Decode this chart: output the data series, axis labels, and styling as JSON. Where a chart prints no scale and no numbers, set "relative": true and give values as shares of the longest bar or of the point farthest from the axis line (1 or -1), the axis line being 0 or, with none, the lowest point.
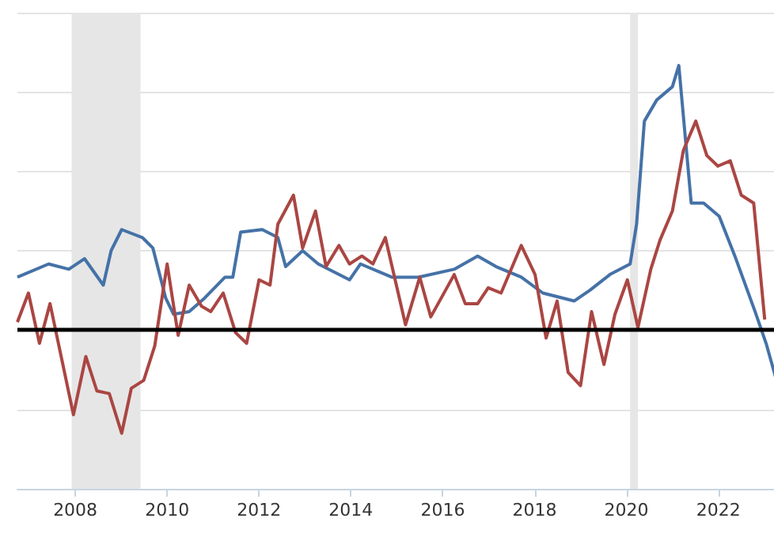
{
  "chart_data": {
    "type": "line",
    "relative": true,
    "grid": "y",
    "xlim": [
      2006.74,
      2023.35
    ],
    "xticks": [
      2008,
      2010,
      2012,
      2014,
      2016,
      2018,
      2020,
      2022
    ],
    "series": [
      {
        "color": "#4572a7",
        "x": [
          2006.74,
          2007.42,
          2007.86,
          2008.2,
          2008.61,
          2008.78,
          2009.01,
          2009.46,
          2009.69,
          2009.97,
          2010.14,
          2010.48,
          2010.81,
          2011.26,
          2011.43,
          2011.6,
          2012.07,
          2012.41,
          2012.58,
          2012.95,
          2013.29,
          2013.97,
          2014.21,
          2014.89,
          2015.47,
          2016.25,
          2016.76,
          2017.16,
          2017.71,
          2018.18,
          2018.86,
          2019.2,
          2019.64,
          2020.08,
          2020.22,
          2020.39,
          2020.66,
          2021.0,
          2021.14,
          2021.41,
          2021.68,
          2022.02,
          2022.36,
          2022.8,
          2023.04,
          2023.25
        ],
        "values": [
          0.2,
          0.25,
          0.23,
          0.27,
          0.17,
          0.3,
          0.38,
          0.35,
          0.31,
          0.12,
          0.06,
          0.07,
          0.12,
          0.2,
          0.2,
          0.37,
          0.38,
          0.35,
          0.24,
          0.3,
          0.25,
          0.19,
          0.25,
          0.2,
          0.2,
          0.23,
          0.28,
          0.24,
          0.2,
          0.14,
          0.11,
          0.15,
          0.21,
          0.25,
          0.4,
          0.79,
          0.87,
          0.92,
          1,
          0.48,
          0.48,
          0.43,
          0.28,
          0.07,
          -0.05,
          -0.18
        ]
      },
      {
        "color": "#aa4643",
        "x": [
          2006.74,
          2006.98,
          2007.22,
          2007.45,
          2007.96,
          2008.23,
          2008.47,
          2008.74,
          2009.01,
          2009.22,
          2009.49,
          2009.73,
          2010.0,
          2010.24,
          2010.48,
          2010.75,
          2010.95,
          2011.22,
          2011.49,
          2011.73,
          2012.0,
          2012.24,
          2012.41,
          2012.75,
          2012.95,
          2013.23,
          2013.46,
          2013.74,
          2013.97,
          2014.24,
          2014.48,
          2014.75,
          2015.19,
          2015.5,
          2015.74,
          2016.25,
          2016.49,
          2016.76,
          2016.99,
          2017.27,
          2017.71,
          2018.01,
          2018.25,
          2018.49,
          2018.73,
          2019.0,
          2019.24,
          2019.51,
          2019.75,
          2020.02,
          2020.25,
          2020.53,
          2020.73,
          2021.0,
          2021.24,
          2021.51,
          2021.75,
          2021.99,
          2022.26,
          2022.5,
          2022.77,
          2023.01
        ],
        "values": [
          0.03,
          0.14,
          -0.05,
          0.1,
          -0.32,
          -0.1,
          -0.23,
          -0.24,
          -0.39,
          -0.22,
          -0.19,
          -0.06,
          0.25,
          -0.02,
          0.17,
          0.09,
          0.07,
          0.14,
          -0.01,
          -0.05,
          0.19,
          0.17,
          0.4,
          0.51,
          0.31,
          0.45,
          0.24,
          0.32,
          0.25,
          0.28,
          0.25,
          0.35,
          0.02,
          0.2,
          0.05,
          0.21,
          0.1,
          0.1,
          0.16,
          0.14,
          0.32,
          0.21,
          -0.03,
          0.11,
          -0.16,
          -0.21,
          0.07,
          -0.13,
          0.06,
          0.19,
          0.01,
          0.23,
          0.34,
          0.45,
          0.68,
          0.79,
          0.66,
          0.62,
          0.64,
          0.51,
          0.48,
          0.04
        ]
      }
    ],
    "ref_lines": [
      {
        "axis": "y",
        "value": 0,
        "color": "#000000"
      }
    ],
    "bands": [
      {
        "axis": "x",
        "from": 2007.92,
        "to": 2009.42,
        "color": "#e6e6e6"
      },
      {
        "axis": "x",
        "from": 2020.08,
        "to": 2020.25,
        "color": "#e6e6e6"
      }
    ]
  }
}
